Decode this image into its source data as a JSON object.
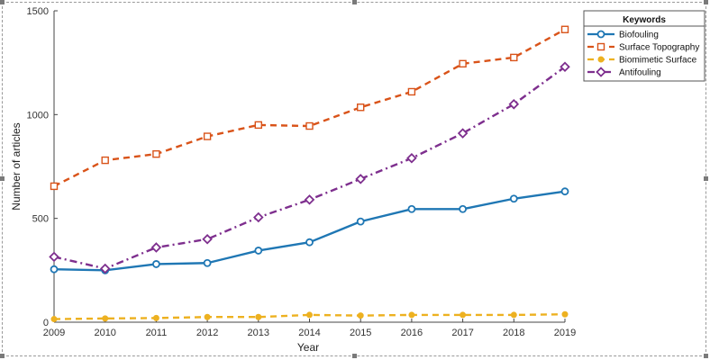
{
  "chart_data": {
    "type": "line",
    "title": "",
    "xlabel": "Year",
    "ylabel": "Number of articles",
    "x": [
      2009,
      2010,
      2011,
      2012,
      2013,
      2014,
      2015,
      2016,
      2017,
      2018,
      2019
    ],
    "xticks": [
      "2009",
      "2010",
      "2011",
      "2012",
      "2013",
      "2014",
      "2015",
      "2016",
      "2017",
      "2018",
      "2019"
    ],
    "yticks": [
      "0",
      "500",
      "1000",
      "1500"
    ],
    "ylim": [
      0,
      1500
    ],
    "grid": false,
    "legend": {
      "title": "Keywords",
      "placement": "top-right"
    },
    "series": [
      {
        "name": "Biofouling",
        "color": "#1f77b4",
        "dash": "solid",
        "marker": "circle",
        "values": [
          255,
          250,
          280,
          285,
          345,
          385,
          485,
          545,
          545,
          595,
          630
        ]
      },
      {
        "name": "Surface Topography",
        "color": "#d95319",
        "dash": "dashed",
        "marker": "square",
        "values": [
          655,
          780,
          810,
          895,
          950,
          945,
          1035,
          1110,
          1245,
          1275,
          1410
        ]
      },
      {
        "name": "Biomimetic Surface",
        "color": "#edb120",
        "dash": "dashed",
        "marker": "dot",
        "values": [
          15,
          18,
          20,
          25,
          25,
          35,
          32,
          35,
          35,
          35,
          38
        ]
      },
      {
        "name": "Antifouling",
        "color": "#7e2f8e",
        "dash": "dashdot",
        "marker": "diamond",
        "values": [
          315,
          258,
          360,
          400,
          505,
          590,
          690,
          790,
          910,
          1050,
          1230
        ]
      }
    ]
  }
}
